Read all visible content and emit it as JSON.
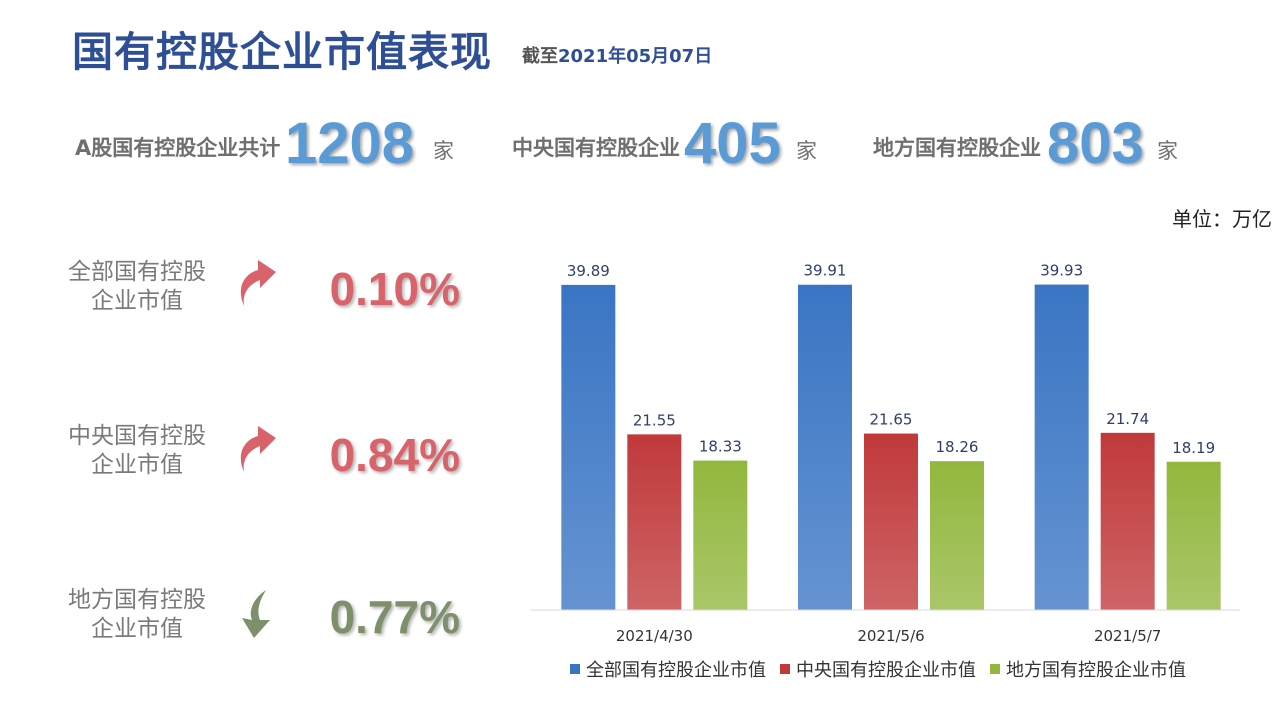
{
  "header": {
    "title": "国有控股企业市值表现",
    "asof_prefix": "截至",
    "asof_date": "2021年05月07日"
  },
  "counts": [
    {
      "label": "A股国有控股企业共计",
      "value": "1208",
      "unit": "家"
    },
    {
      "label": "中央国有控股企业",
      "value": "405",
      "unit": "家"
    },
    {
      "label": "地方国有控股企业",
      "value": "803",
      "unit": "家"
    }
  ],
  "unit_note": "单位：万亿",
  "metrics": [
    {
      "label_line1": "全部国有控股",
      "label_line2": "企业市值",
      "value": "0.10%",
      "direction": "up",
      "color": "#d9636a",
      "icon": "arrow-up-icon"
    },
    {
      "label_line1": "中央国有控股",
      "label_line2": "企业市值",
      "value": "0.84%",
      "direction": "up",
      "color": "#d9636a",
      "icon": "arrow-up-icon"
    },
    {
      "label_line1": "地方国有控股",
      "label_line2": "企业市值",
      "value": "0.77%",
      "direction": "down",
      "color": "#7d8f6b",
      "icon": "arrow-down-icon"
    }
  ],
  "chart_data": {
    "type": "bar",
    "categories": [
      "2021/4/30",
      "2021/5/6",
      "2021/5/7"
    ],
    "series": [
      {
        "name": "全部国有控股企业市值",
        "values": [
          39.89,
          39.91,
          39.93
        ],
        "color": "#3a75c4"
      },
      {
        "name": "中央国有控股企业市值",
        "values": [
          21.55,
          21.65,
          21.74
        ],
        "color": "#c0393b"
      },
      {
        "name": "地方国有控股企业市值",
        "values": [
          18.33,
          18.26,
          18.19
        ],
        "color": "#92b73e"
      }
    ],
    "ylim": [
      0,
      40
    ],
    "grid": false,
    "legend": "bottom"
  }
}
